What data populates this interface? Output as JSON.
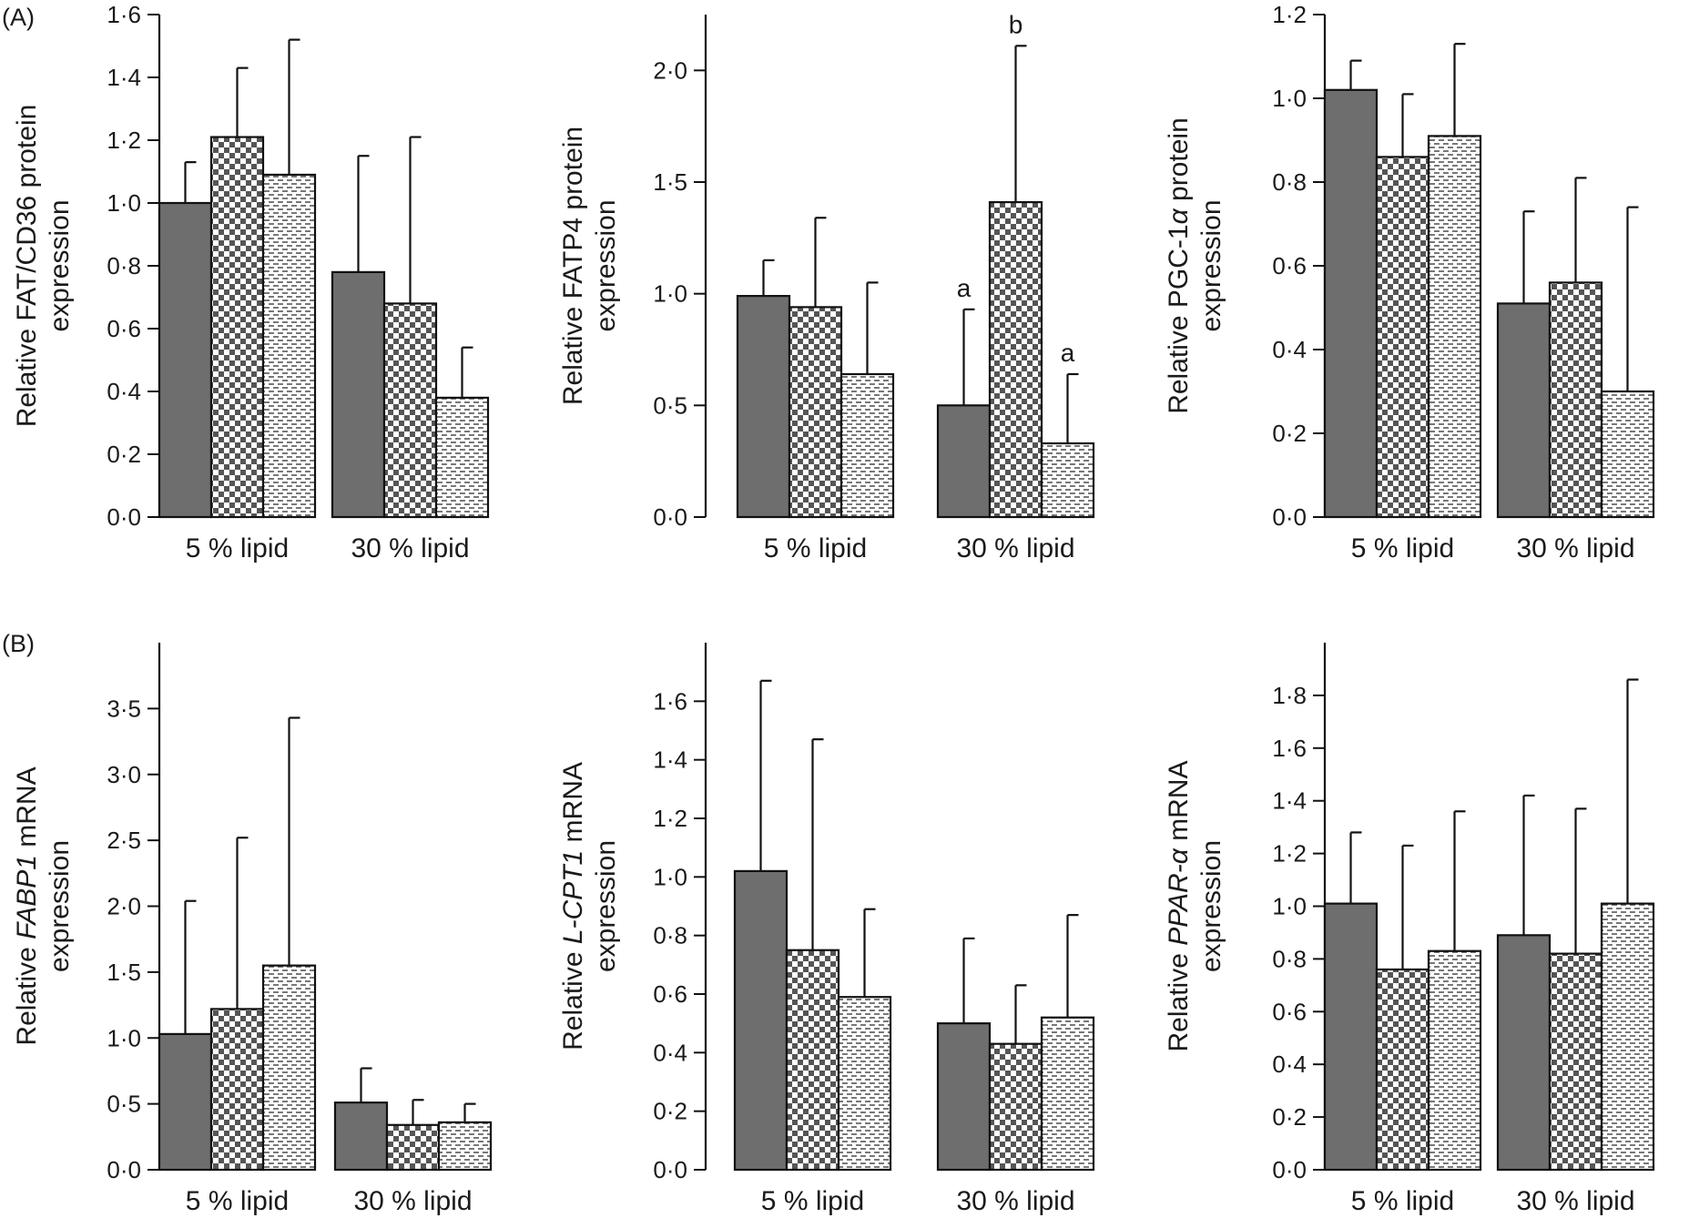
{
  "figure": {
    "panel_labels": [
      "(A)",
      "(B)"
    ],
    "series_colors": [
      "#6e6e6e"
    ]
  },
  "chart_data": [
    {
      "type": "bar",
      "panel": "(A)",
      "ylabel_parts": [
        {
          "t": "Relative FAT/CD36 protein",
          "i": false
        }
      ],
      "ylabel_line2": "expression",
      "categories": [
        "5 % lipid",
        "30 % lipid"
      ],
      "ylim": [
        0,
        1.6
      ],
      "yticks": [
        "0·0",
        "0·2",
        "0·4",
        "0·6",
        "0·8",
        "1·0",
        "1·2",
        "1·4",
        "1·6"
      ],
      "series": [
        {
          "name": "series-1",
          "pattern": "solid",
          "values": [
            1.0,
            0.78
          ],
          "errors": [
            0.13,
            0.37
          ]
        },
        {
          "name": "series-2",
          "pattern": "checker",
          "values": [
            1.21,
            0.68
          ],
          "errors": [
            0.22,
            0.53
          ]
        },
        {
          "name": "series-3",
          "pattern": "dash",
          "values": [
            1.09,
            0.38
          ],
          "errors": [
            0.43,
            0.16
          ]
        }
      ],
      "annotations": []
    },
    {
      "type": "bar",
      "panel": "",
      "ylabel_parts": [
        {
          "t": "Relative FATP4 protein",
          "i": false
        }
      ],
      "ylabel_line2": "expression",
      "categories": [
        "5 % lipid",
        "30 % lipid"
      ],
      "ylim": [
        0,
        2.25
      ],
      "yticks": [
        "0·0",
        "0·5",
        "1·0",
        "1·5",
        "2·0"
      ],
      "series": [
        {
          "name": "series-1",
          "pattern": "solid",
          "values": [
            0.99,
            0.5
          ],
          "errors": [
            0.16,
            0.43
          ]
        },
        {
          "name": "series-2",
          "pattern": "checker",
          "values": [
            0.94,
            1.41
          ],
          "errors": [
            0.4,
            0.7
          ]
        },
        {
          "name": "series-3",
          "pattern": "dash",
          "values": [
            0.64,
            0.33
          ],
          "errors": [
            0.41,
            0.31
          ]
        }
      ],
      "annotations": [
        {
          "group": 1,
          "series": 0,
          "text": "a"
        },
        {
          "group": 1,
          "series": 1,
          "text": "b"
        },
        {
          "group": 1,
          "series": 2,
          "text": "a"
        }
      ]
    },
    {
      "type": "bar",
      "panel": "",
      "ylabel_parts": [
        {
          "t": "Relative PGC-1",
          "i": false
        },
        {
          "t": "α",
          "i": true
        },
        {
          "t": " protein",
          "i": false
        }
      ],
      "ylabel_line2": "expression",
      "categories": [
        "5 % lipid",
        "30 % lipid"
      ],
      "ylim": [
        0,
        1.2
      ],
      "yticks": [
        "0·0",
        "0·2",
        "0·4",
        "0·6",
        "0·8",
        "1·0",
        "1·2"
      ],
      "series": [
        {
          "name": "series-1",
          "pattern": "solid",
          "values": [
            1.02,
            0.51
          ],
          "errors": [
            0.07,
            0.22
          ]
        },
        {
          "name": "series-2",
          "pattern": "checker",
          "values": [
            0.86,
            0.56
          ],
          "errors": [
            0.15,
            0.25
          ]
        },
        {
          "name": "series-3",
          "pattern": "dash",
          "values": [
            0.91,
            0.3
          ],
          "errors": [
            0.22,
            0.44
          ]
        }
      ],
      "annotations": []
    },
    {
      "type": "bar",
      "panel": "(B)",
      "ylabel_parts": [
        {
          "t": "Relative ",
          "i": false
        },
        {
          "t": "FABP1",
          "i": true
        },
        {
          "t": " mRNA",
          "i": false
        }
      ],
      "ylabel_line2": "expression",
      "categories": [
        "5 % lipid",
        "30 % lipid"
      ],
      "ylim": [
        0,
        4.0
      ],
      "yticks": [
        "0·0",
        "0·5",
        "1·0",
        "1·5",
        "2·0",
        "2·5",
        "3·0",
        "3·5"
      ],
      "series": [
        {
          "name": "series-1",
          "pattern": "solid",
          "values": [
            1.03,
            0.51
          ],
          "errors": [
            1.01,
            0.26
          ]
        },
        {
          "name": "series-2",
          "pattern": "checker",
          "values": [
            1.22,
            0.34
          ],
          "errors": [
            1.3,
            0.19
          ]
        },
        {
          "name": "series-3",
          "pattern": "dash",
          "values": [
            1.55,
            0.36
          ],
          "errors": [
            1.88,
            0.14
          ]
        }
      ],
      "annotations": []
    },
    {
      "type": "bar",
      "panel": "",
      "ylabel_parts": [
        {
          "t": "Relative ",
          "i": false
        },
        {
          "t": "L-CPT1",
          "i": true
        },
        {
          "t": " mRNA",
          "i": false
        }
      ],
      "ylabel_line2": "expression",
      "categories": [
        "5 % lipid",
        "30 % lipid"
      ],
      "ylim": [
        0,
        1.8
      ],
      "yticks": [
        "0·0",
        "0·2",
        "0·4",
        "0·6",
        "0·8",
        "1·0",
        "1·2",
        "1·4",
        "1·6"
      ],
      "series": [
        {
          "name": "series-1",
          "pattern": "solid",
          "values": [
            1.02,
            0.5
          ],
          "errors": [
            0.65,
            0.29
          ]
        },
        {
          "name": "series-2",
          "pattern": "checker",
          "values": [
            0.75,
            0.43
          ],
          "errors": [
            0.72,
            0.2
          ]
        },
        {
          "name": "series-3",
          "pattern": "dash",
          "values": [
            0.59,
            0.52
          ],
          "errors": [
            0.3,
            0.35
          ]
        }
      ],
      "annotations": []
    },
    {
      "type": "bar",
      "panel": "",
      "ylabel_parts": [
        {
          "t": "Relative ",
          "i": false
        },
        {
          "t": "PPAR-α",
          "i": true
        },
        {
          "t": " mRNA",
          "i": false
        }
      ],
      "ylabel_line2": "expression",
      "categories": [
        "5 % lipid",
        "30 % lipid"
      ],
      "ylim": [
        0,
        2.0
      ],
      "yticks": [
        "0·0",
        "0·2",
        "0·4",
        "0·6",
        "0·8",
        "1·0",
        "1·2",
        "1·4",
        "1·6",
        "1·8"
      ],
      "series": [
        {
          "name": "series-1",
          "pattern": "solid",
          "values": [
            1.01,
            0.89
          ],
          "errors": [
            0.27,
            0.53
          ]
        },
        {
          "name": "series-2",
          "pattern": "checker",
          "values": [
            0.76,
            0.82
          ],
          "errors": [
            0.47,
            0.55
          ]
        },
        {
          "name": "series-3",
          "pattern": "dash",
          "values": [
            0.83,
            1.01
          ],
          "errors": [
            0.53,
            0.85
          ]
        }
      ],
      "annotations": []
    }
  ]
}
